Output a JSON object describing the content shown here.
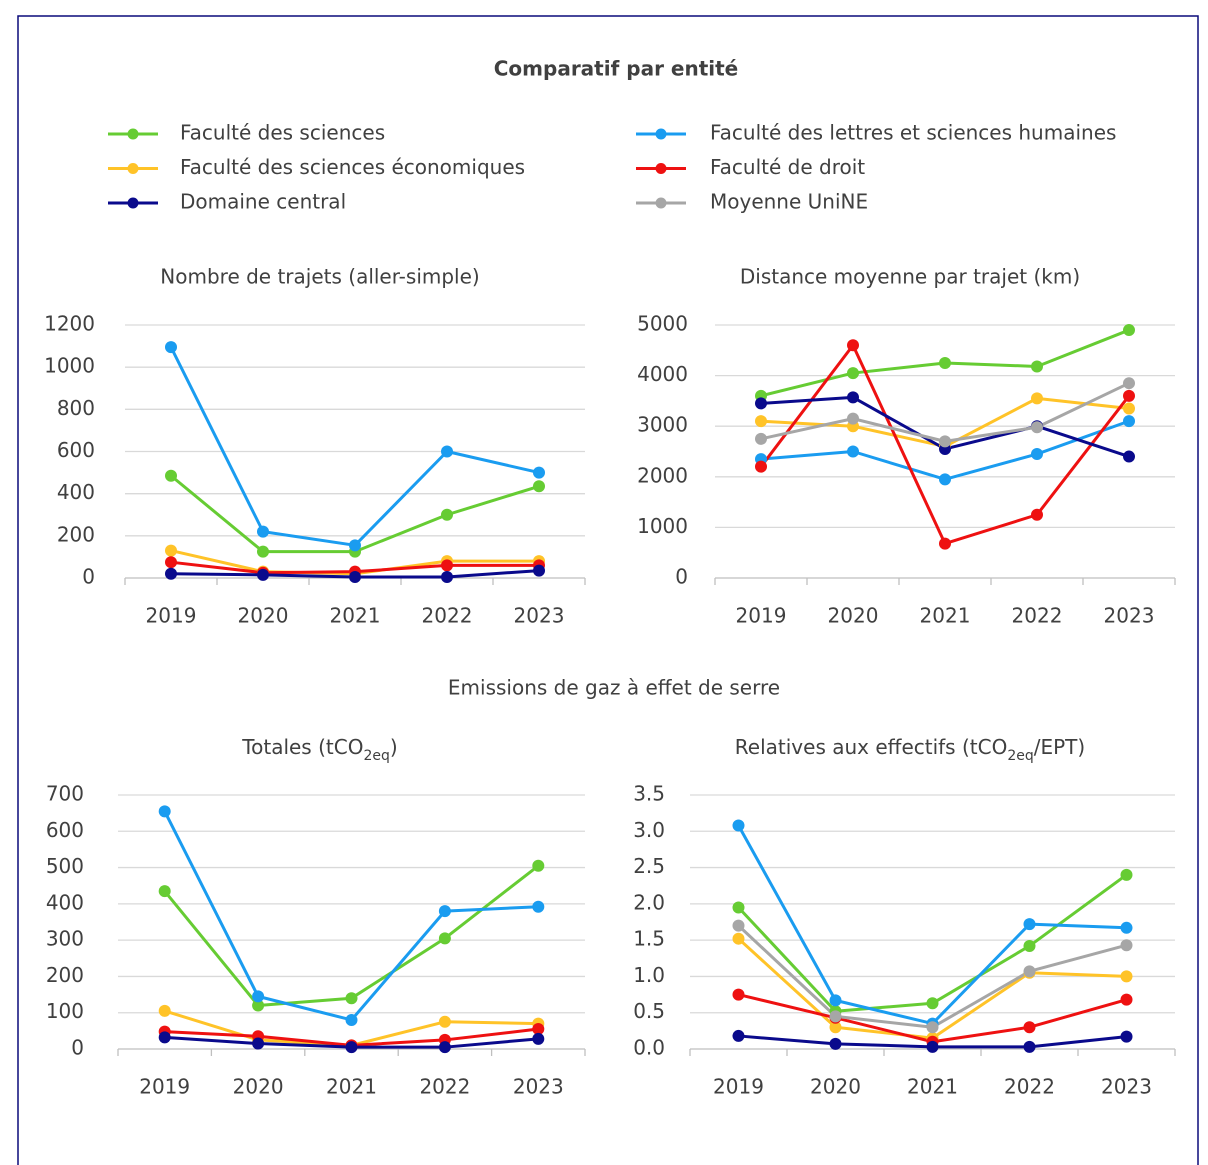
{
  "title": "Comparatif par entité",
  "section_title": "Emissions de gaz à effet de serre",
  "chart_data": [
    {
      "type": "line",
      "title": "Nombre de trajets (aller-simple)",
      "categories": [
        "2019",
        "2020",
        "2021",
        "2022",
        "2023"
      ],
      "ylim": [
        0,
        1200
      ],
      "yticks": [
        0,
        200,
        400,
        600,
        800,
        1000,
        1200
      ],
      "grid": true,
      "series": [
        {
          "name": "Faculté des sciences",
          "color": "#66cc33",
          "values": [
            485,
            125,
            125,
            300,
            435
          ]
        },
        {
          "name": "Faculté des lettres et sciences humaines",
          "color": "#1a9cf0",
          "values": [
            1095,
            220,
            155,
            600,
            500
          ]
        },
        {
          "name": "Faculté des sciences économiques",
          "color": "#ffc328",
          "values": [
            130,
            30,
            20,
            80,
            80
          ]
        },
        {
          "name": "Faculté de droit",
          "color": "#ee1111",
          "values": [
            75,
            25,
            30,
            60,
            60
          ]
        },
        {
          "name": "Domaine central",
          "color": "#0a0a8c",
          "values": [
            20,
            15,
            5,
            5,
            35
          ]
        }
      ]
    },
    {
      "type": "line",
      "title": "Distance moyenne par trajet (km)",
      "categories": [
        "2019",
        "2020",
        "2021",
        "2022",
        "2023"
      ],
      "ylim": [
        0,
        5000
      ],
      "yticks": [
        0,
        1000,
        2000,
        3000,
        4000,
        5000
      ],
      "grid": true,
      "series": [
        {
          "name": "Faculté des sciences",
          "color": "#66cc33",
          "values": [
            3600,
            4050,
            4250,
            4180,
            4900
          ]
        },
        {
          "name": "Faculté des lettres et sciences humaines",
          "color": "#1a9cf0",
          "values": [
            2350,
            2500,
            1950,
            2450,
            3100
          ]
        },
        {
          "name": "Faculté des sciences économiques",
          "color": "#ffc328",
          "values": [
            3100,
            3000,
            2600,
            3550,
            3350
          ]
        },
        {
          "name": "Faculté de droit",
          "color": "#ee1111",
          "values": [
            2200,
            4600,
            680,
            1250,
            3600
          ]
        },
        {
          "name": "Domaine central",
          "color": "#0a0a8c",
          "values": [
            3450,
            3570,
            2550,
            3000,
            2400
          ]
        },
        {
          "name": "Moyenne UniNE",
          "color": "#a6a6a6",
          "values": [
            2750,
            3150,
            2700,
            2980,
            3850
          ]
        }
      ]
    },
    {
      "type": "line",
      "title": [
        "Totales (tCO",
        "2eq",
        ")"
      ],
      "categories": [
        "2019",
        "2020",
        "2021",
        "2022",
        "2023"
      ],
      "ylim": [
        0,
        700
      ],
      "yticks": [
        0,
        100,
        200,
        300,
        400,
        500,
        600,
        700
      ],
      "grid": true,
      "series": [
        {
          "name": "Faculté des sciences",
          "color": "#66cc33",
          "values": [
            435,
            120,
            140,
            305,
            505
          ]
        },
        {
          "name": "Faculté des lettres et sciences humaines",
          "color": "#1a9cf0",
          "values": [
            655,
            145,
            80,
            380,
            392
          ]
        },
        {
          "name": "Faculté des sciences économiques",
          "color": "#ffc328",
          "values": [
            105,
            25,
            10,
            75,
            70
          ]
        },
        {
          "name": "Faculté de droit",
          "color": "#ee1111",
          "values": [
            48,
            35,
            10,
            25,
            55
          ]
        },
        {
          "name": "Domaine central",
          "color": "#0a0a8c",
          "values": [
            32,
            15,
            5,
            5,
            28
          ]
        }
      ]
    },
    {
      "type": "line",
      "title": [
        "Relatives aux effectifs (tCO",
        "2eq",
        "/EPT)"
      ],
      "categories": [
        "2019",
        "2020",
        "2021",
        "2022",
        "2023"
      ],
      "ylim": [
        0,
        3.5
      ],
      "yticks": [
        {
          "value": 0,
          "label": "0.0"
        },
        0.5,
        {
          "value": 1,
          "label": "1.0"
        },
        1.5,
        {
          "value": 2,
          "label": "2.0"
        },
        2.5,
        {
          "value": 3,
          "label": "3.0"
        },
        3.5
      ],
      "grid": true,
      "series": [
        {
          "name": "Faculté des sciences",
          "color": "#66cc33",
          "values": [
            1.95,
            0.52,
            0.63,
            1.42,
            2.4
          ]
        },
        {
          "name": "Faculté des lettres et sciences humaines",
          "color": "#1a9cf0",
          "values": [
            3.08,
            0.67,
            0.35,
            1.72,
            1.67
          ]
        },
        {
          "name": "Faculté des sciences économiques",
          "color": "#ffc328",
          "values": [
            1.52,
            0.3,
            0.15,
            1.05,
            1
          ]
        },
        {
          "name": "Faculté de droit",
          "color": "#ee1111",
          "values": [
            0.75,
            0.43,
            0.1,
            0.3,
            0.68
          ]
        },
        {
          "name": "Domaine central",
          "color": "#0a0a8c",
          "values": [
            0.18,
            0.07,
            0.03,
            0.03,
            0.17
          ]
        },
        {
          "name": "Moyenne UniNE",
          "color": "#a6a6a6",
          "values": [
            1.7,
            0.45,
            0.3,
            1.07,
            1.43
          ]
        }
      ]
    }
  ]
}
